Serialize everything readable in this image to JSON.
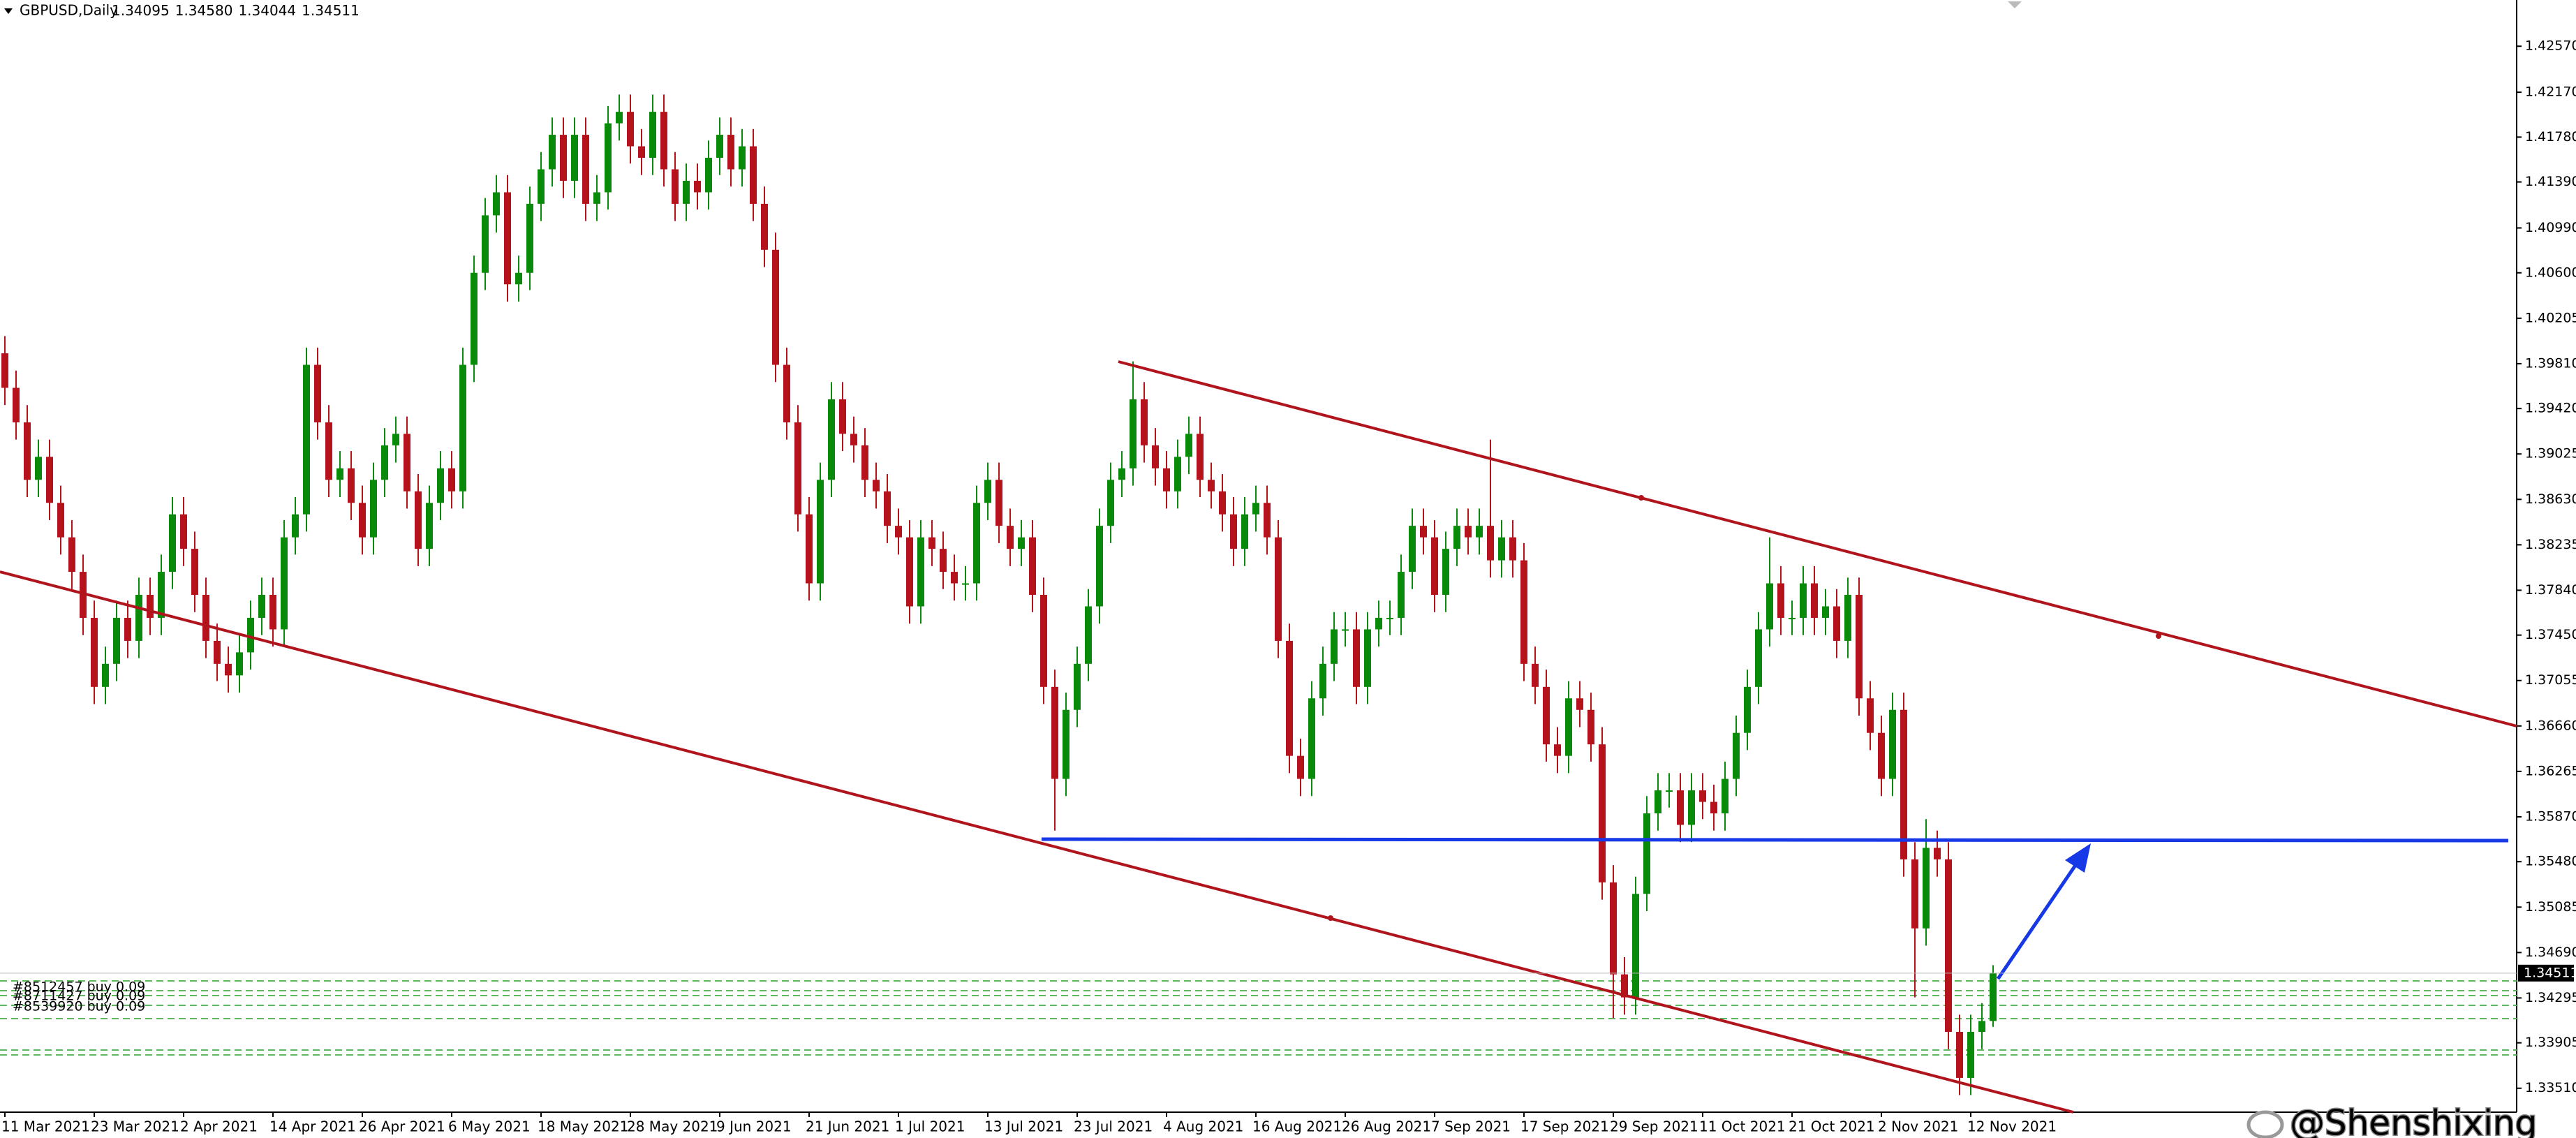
{
  "chart_data": {
    "type": "candlestick",
    "symbol": "GBPUSD,Daily",
    "header_values": [
      "1.34095",
      "1.34580",
      "1.34044",
      "1.34511"
    ],
    "up_color": "#0a8a0a",
    "down_color": "#b5121b",
    "categories": [
      "11 Mar 2021",
      null,
      null,
      null,
      null,
      null,
      null,
      null,
      "23 Mar 2021",
      null,
      null,
      null,
      null,
      null,
      null,
      null,
      "2 Apr 2021",
      null,
      null,
      null,
      null,
      null,
      null,
      null,
      "14 Apr 2021",
      null,
      null,
      null,
      null,
      null,
      null,
      null,
      "26 Apr 2021",
      null,
      null,
      null,
      null,
      null,
      null,
      null,
      "6 May 2021",
      null,
      null,
      null,
      null,
      null,
      null,
      null,
      "18 May 2021",
      null,
      null,
      null,
      null,
      null,
      null,
      null,
      "28 May 2021",
      null,
      null,
      null,
      null,
      null,
      null,
      null,
      "9 Jun 2021",
      null,
      null,
      null,
      null,
      null,
      null,
      null,
      "21 Jun 2021",
      null,
      null,
      null,
      null,
      null,
      null,
      null,
      "1 Jul 2021",
      null,
      null,
      null,
      null,
      null,
      null,
      null,
      "13 Jul 2021",
      null,
      null,
      null,
      null,
      null,
      null,
      null,
      "23 Jul 2021",
      null,
      null,
      null,
      null,
      null,
      null,
      null,
      "4 Aug 2021",
      null,
      null,
      null,
      null,
      null,
      null,
      null,
      "16 Aug 2021",
      null,
      null,
      null,
      null,
      null,
      null,
      null,
      "26 Aug 2021",
      null,
      null,
      null,
      null,
      null,
      null,
      null,
      "7 Sep 2021",
      null,
      null,
      null,
      null,
      null,
      null,
      null,
      "17 Sep 2021",
      null,
      null,
      null,
      null,
      null,
      null,
      null,
      "29 Sep 2021",
      null,
      null,
      null,
      null,
      null,
      null,
      null,
      "11 Oct 2021",
      null,
      null,
      null,
      null,
      null,
      null,
      null,
      "21 Oct 2021",
      null,
      null,
      null,
      null,
      null,
      null,
      null,
      "2 Nov 2021",
      null,
      null,
      null,
      null,
      null,
      null,
      null,
      "12 Nov 2021",
      null,
      null
    ],
    "open": [
      1.399,
      1.396,
      1.393,
      1.388,
      1.39,
      1.386,
      1.383,
      1.38,
      1.376,
      1.37,
      1.372,
      1.376,
      1.374,
      1.378,
      1.376,
      1.38,
      1.385,
      1.382,
      1.378,
      1.374,
      1.372,
      1.371,
      1.373,
      1.376,
      1.378,
      1.375,
      1.383,
      1.385,
      1.398,
      1.393,
      1.388,
      1.389,
      1.386,
      1.383,
      1.388,
      1.391,
      1.392,
      1.387,
      1.382,
      1.386,
      1.389,
      1.387,
      1.398,
      1.406,
      1.411,
      1.413,
      1.405,
      1.406,
      1.412,
      1.415,
      1.418,
      1.414,
      1.418,
      1.412,
      1.413,
      1.419,
      1.42,
      1.417,
      1.416,
      1.42,
      1.415,
      1.412,
      1.414,
      1.413,
      1.416,
      1.418,
      1.415,
      1.417,
      1.412,
      1.408,
      1.398,
      1.393,
      1.385,
      1.379,
      1.388,
      1.395,
      1.392,
      1.391,
      1.388,
      1.387,
      1.384,
      1.383,
      1.377,
      1.383,
      1.382,
      1.38,
      1.379,
      1.379,
      1.386,
      1.388,
      1.384,
      1.382,
      1.383,
      1.378,
      1.37,
      1.362,
      1.368,
      1.372,
      1.377,
      1.384,
      1.388,
      1.389,
      1.395,
      1.391,
      1.389,
      1.387,
      1.39,
      1.392,
      1.388,
      1.387,
      1.385,
      1.382,
      1.385,
      1.386,
      1.383,
      1.374,
      1.364,
      1.362,
      1.369,
      1.372,
      1.375,
      1.375,
      1.37,
      1.375,
      1.376,
      1.376,
      1.38,
      1.384,
      1.383,
      1.378,
      1.382,
      1.384,
      1.383,
      1.384,
      1.381,
      1.383,
      1.381,
      1.372,
      1.37,
      1.365,
      1.364,
      1.369,
      1.368,
      1.365,
      1.353,
      1.345,
      1.343,
      1.352,
      1.359,
      1.361,
      1.361,
      1.358,
      1.361,
      1.36,
      1.359,
      1.362,
      1.366,
      1.37,
      1.375,
      1.379,
      1.376,
      1.376,
      1.379,
      1.376,
      1.377,
      1.374,
      1.378,
      1.369,
      1.366,
      1.362,
      1.368,
      1.355,
      1.349,
      1.356,
      1.355,
      1.34,
      1.336,
      1.34,
      1.34095
    ],
    "high": [
      1.4005,
      1.3975,
      1.3945,
      1.3915,
      1.3915,
      1.3875,
      1.3845,
      1.3815,
      1.3775,
      1.3735,
      1.3775,
      1.3775,
      1.3795,
      1.3795,
      1.3815,
      1.3865,
      1.3865,
      1.3835,
      1.3795,
      1.3755,
      1.3735,
      1.3745,
      1.3775,
      1.3795,
      1.3795,
      1.3845,
      1.3865,
      1.3995,
      1.3995,
      1.3945,
      1.3905,
      1.3905,
      1.3875,
      1.3895,
      1.3925,
      1.3935,
      1.3935,
      1.3885,
      1.3875,
      1.3905,
      1.3905,
      1.3995,
      1.4075,
      1.4125,
      1.4145,
      1.4145,
      1.4075,
      1.4135,
      1.4165,
      1.4195,
      1.4195,
      1.4195,
      1.4195,
      1.4145,
      1.4205,
      1.4215,
      1.4215,
      1.4185,
      1.4215,
      1.4215,
      1.4165,
      1.4155,
      1.4155,
      1.4175,
      1.4195,
      1.4195,
      1.4185,
      1.4185,
      1.4135,
      1.4095,
      1.3995,
      1.3945,
      1.3865,
      1.3895,
      1.3965,
      1.3965,
      1.3935,
      1.3925,
      1.3895,
      1.3885,
      1.3855,
      1.3845,
      1.3845,
      1.3845,
      1.3835,
      1.3815,
      1.3805,
      1.3875,
      1.3895,
      1.3895,
      1.3855,
      1.3845,
      1.3845,
      1.3795,
      1.3715,
      1.3695,
      1.3735,
      1.3785,
      1.3855,
      1.3895,
      1.3905,
      1.3983,
      1.3965,
      1.3925,
      1.3905,
      1.3915,
      1.3935,
      1.3935,
      1.3895,
      1.3885,
      1.3865,
      1.3865,
      1.3875,
      1.3875,
      1.3845,
      1.3755,
      1.3655,
      1.3705,
      1.3735,
      1.3765,
      1.3765,
      1.3765,
      1.3765,
      1.3775,
      1.3775,
      1.3815,
      1.3855,
      1.3855,
      1.3845,
      1.3835,
      1.3855,
      1.3855,
      1.3855,
      1.3915,
      1.3845,
      1.3845,
      1.3825,
      1.3735,
      1.3715,
      1.3665,
      1.3705,
      1.3705,
      1.3695,
      1.3665,
      1.3545,
      1.3465,
      1.3535,
      1.3605,
      1.3625,
      1.3625,
      1.3625,
      1.3625,
      1.3625,
      1.3615,
      1.3635,
      1.3675,
      1.3715,
      1.3765,
      1.383,
      1.3805,
      1.3775,
      1.3805,
      1.3805,
      1.3785,
      1.3785,
      1.3795,
      1.3795,
      1.3705,
      1.3675,
      1.3695,
      1.3695,
      1.3565,
      1.3585,
      1.3575,
      1.3565,
      1.3415,
      1.3415,
      1.3425,
      1.3458
    ],
    "low": [
      1.3945,
      1.3915,
      1.3865,
      1.3865,
      1.3845,
      1.3815,
      1.3785,
      1.3745,
      1.3685,
      1.3685,
      1.3705,
      1.3725,
      1.3725,
      1.3745,
      1.3745,
      1.3785,
      1.3805,
      1.3765,
      1.3725,
      1.3705,
      1.3695,
      1.3695,
      1.3715,
      1.3745,
      1.3735,
      1.3735,
      1.3815,
      1.3835,
      1.3915,
      1.3865,
      1.3865,
      1.3845,
      1.3815,
      1.3815,
      1.3865,
      1.3895,
      1.3855,
      1.3805,
      1.3805,
      1.3845,
      1.3855,
      1.3855,
      1.3965,
      1.4045,
      1.4095,
      1.4035,
      1.4035,
      1.4045,
      1.4105,
      1.4135,
      1.4125,
      1.4125,
      1.4105,
      1.4105,
      1.4115,
      1.4175,
      1.4155,
      1.4145,
      1.4145,
      1.4135,
      1.4105,
      1.4105,
      1.4115,
      1.4115,
      1.4145,
      1.4135,
      1.4135,
      1.4105,
      1.4065,
      1.3965,
      1.3915,
      1.3835,
      1.3775,
      1.3775,
      1.3865,
      1.3905,
      1.3895,
      1.3865,
      1.3855,
      1.3825,
      1.3815,
      1.3755,
      1.3755,
      1.3805,
      1.3785,
      1.3775,
      1.3775,
      1.3775,
      1.3845,
      1.3825,
      1.3805,
      1.3805,
      1.3765,
      1.3685,
      1.3575,
      1.3605,
      1.3665,
      1.3705,
      1.3755,
      1.3825,
      1.3865,
      1.3875,
      1.3895,
      1.3875,
      1.3855,
      1.3855,
      1.3885,
      1.3865,
      1.3855,
      1.3835,
      1.3805,
      1.3805,
      1.3835,
      1.3815,
      1.3725,
      1.3625,
      1.3605,
      1.3605,
      1.3675,
      1.3705,
      1.3735,
      1.3685,
      1.3685,
      1.3735,
      1.3745,
      1.3745,
      1.3785,
      1.3815,
      1.3765,
      1.3765,
      1.3805,
      1.3815,
      1.3815,
      1.3795,
      1.3795,
      1.3795,
      1.3705,
      1.3685,
      1.3635,
      1.3625,
      1.3625,
      1.3665,
      1.3635,
      1.3515,
      1.3412,
      1.3415,
      1.3415,
      1.3505,
      1.3575,
      1.3595,
      1.3565,
      1.3565,
      1.3585,
      1.3575,
      1.3575,
      1.3605,
      1.3645,
      1.3685,
      1.3735,
      1.3745,
      1.3745,
      1.3745,
      1.3745,
      1.3745,
      1.3725,
      1.3725,
      1.3675,
      1.3645,
      1.3605,
      1.3605,
      1.3535,
      1.343,
      1.3475,
      1.3535,
      1.3385,
      1.3345,
      1.3345,
      1.3385,
      1.34044
    ],
    "close": [
      1.396,
      1.393,
      1.388,
      1.39,
      1.386,
      1.383,
      1.38,
      1.376,
      1.37,
      1.372,
      1.376,
      1.374,
      1.378,
      1.376,
      1.38,
      1.385,
      1.382,
      1.378,
      1.374,
      1.372,
      1.371,
      1.373,
      1.376,
      1.378,
      1.375,
      1.383,
      1.385,
      1.398,
      1.393,
      1.388,
      1.389,
      1.386,
      1.383,
      1.388,
      1.391,
      1.392,
      1.387,
      1.382,
      1.386,
      1.389,
      1.387,
      1.398,
      1.406,
      1.411,
      1.413,
      1.405,
      1.406,
      1.412,
      1.415,
      1.418,
      1.414,
      1.418,
      1.412,
      1.413,
      1.419,
      1.42,
      1.417,
      1.416,
      1.42,
      1.415,
      1.412,
      1.414,
      1.413,
      1.416,
      1.418,
      1.415,
      1.417,
      1.412,
      1.408,
      1.398,
      1.393,
      1.385,
      1.379,
      1.388,
      1.395,
      1.392,
      1.391,
      1.388,
      1.387,
      1.384,
      1.383,
      1.377,
      1.383,
      1.382,
      1.38,
      1.379,
      1.379,
      1.386,
      1.388,
      1.384,
      1.382,
      1.383,
      1.378,
      1.37,
      1.362,
      1.368,
      1.372,
      1.377,
      1.384,
      1.388,
      1.389,
      1.395,
      1.391,
      1.389,
      1.387,
      1.39,
      1.392,
      1.388,
      1.387,
      1.385,
      1.382,
      1.385,
      1.386,
      1.383,
      1.374,
      1.364,
      1.362,
      1.369,
      1.372,
      1.375,
      1.375,
      1.37,
      1.375,
      1.376,
      1.376,
      1.38,
      1.384,
      1.383,
      1.378,
      1.382,
      1.384,
      1.383,
      1.384,
      1.381,
      1.383,
      1.381,
      1.372,
      1.37,
      1.365,
      1.364,
      1.369,
      1.368,
      1.365,
      1.353,
      1.345,
      1.343,
      1.352,
      1.359,
      1.361,
      1.361,
      1.358,
      1.361,
      1.36,
      1.359,
      1.362,
      1.366,
      1.37,
      1.375,
      1.379,
      1.376,
      1.376,
      1.379,
      1.376,
      1.377,
      1.374,
      1.378,
      1.369,
      1.366,
      1.362,
      1.368,
      1.355,
      1.349,
      1.356,
      1.355,
      1.34,
      1.336,
      1.34,
      1.34095,
      1.34511
    ],
    "ylim": [
      1.33302,
      1.42972
    ],
    "yticks": [
      {
        "value": 1.4257,
        "label": "1.42570"
      },
      {
        "value": 1.4217,
        "label": "1.42170"
      },
      {
        "value": 1.4178,
        "label": "1.41780"
      },
      {
        "value": 1.4139,
        "label": "1.41390"
      },
      {
        "value": 1.4099,
        "label": "1.40990"
      },
      {
        "value": 1.406,
        "label": "1.40600"
      },
      1.40205,
      {
        "value": 1.3981,
        "label": "1.39810"
      },
      {
        "value": 1.3942,
        "label": "1.39420"
      },
      1.39025,
      {
        "value": 1.3863,
        "label": "1.38630"
      },
      1.38235,
      {
        "value": 1.3784,
        "label": "1.37840"
      },
      {
        "value": 1.3745,
        "label": "1.37450"
      },
      1.37055,
      {
        "value": 1.3666,
        "label": "1.36660"
      },
      1.36265,
      {
        "value": 1.3587,
        "label": "1.35870"
      },
      {
        "value": 1.3548,
        "label": "1.35480"
      },
      1.35085,
      {
        "value": 1.3469,
        "label": "1.34690"
      },
      1.34295,
      1.33905,
      {
        "value": 1.3351,
        "label": "1.33510"
      }
    ],
    "orders": [
      "#8512457 buy 0.09",
      "#8711427 buy 0.09",
      "#8539920 buy 0.09"
    ],
    "watermark": "@Shenshixing"
  }
}
